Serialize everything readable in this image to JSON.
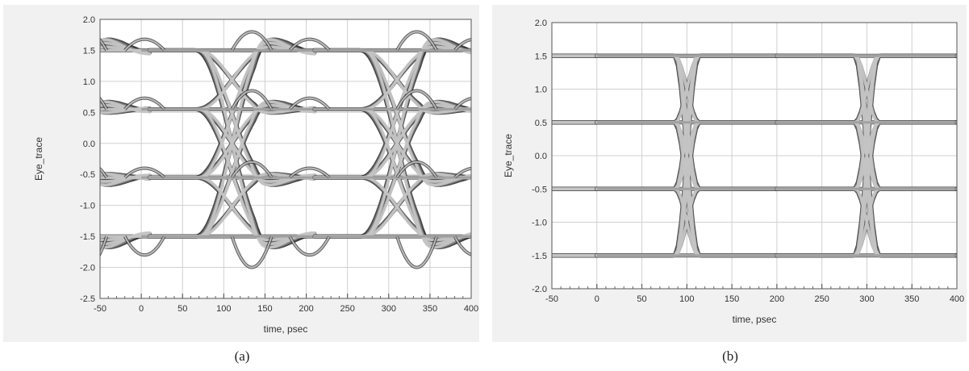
{
  "chart_data": [
    {
      "type": "line",
      "title": "",
      "caption": "(a)",
      "xlabel": "time, psec",
      "ylabel": "Eye_trace",
      "xlim": [
        -50,
        400
      ],
      "ylim": [
        -2.5,
        2.0
      ],
      "xticks": [
        "-50",
        "0",
        "50",
        "100",
        "150",
        "200",
        "250",
        "300",
        "350",
        "400"
      ],
      "yticks": [
        "2.0",
        "1.5",
        "1.0",
        "0.5",
        "0.0",
        "-0.5",
        "-1.0",
        "-1.5",
        "-2.0",
        "-2.5"
      ],
      "grid": true,
      "unit_interval_ps": 200,
      "crossing_times_ps": [
        110,
        310
      ],
      "levels": [
        1.5,
        0.55,
        -0.55,
        -1.5
      ],
      "overshoot_levels": [
        1.8,
        -2.0
      ]
    },
    {
      "type": "line",
      "title": "",
      "caption": "(b)",
      "xlabel": "time, psec",
      "ylabel": "Eye_trace",
      "xlim": [
        -50,
        400
      ],
      "ylim": [
        -2.0,
        2.0
      ],
      "xticks": [
        "-50",
        "0",
        "50",
        "100",
        "150",
        "200",
        "250",
        "300",
        "350",
        "400"
      ],
      "yticks": [
        "2.0",
        "1.5",
        "1.0",
        "0.5",
        "0.0",
        "-0.5",
        "-1.0",
        "-1.5",
        "-2.0"
      ],
      "grid": true,
      "unit_interval_ps": 200,
      "crossing_times_ps": [
        100,
        300
      ],
      "levels": [
        1.5,
        0.5,
        -0.5,
        -1.5
      ]
    }
  ],
  "colors": {
    "trace_light": "#c4c4c4",
    "trace_mid": "#8a8a8a",
    "trace_dark": "#2a2a2a",
    "panel_bg": "#f1f1f1",
    "plot_bg": "#ffffff",
    "grid": "#d0d0d0"
  }
}
